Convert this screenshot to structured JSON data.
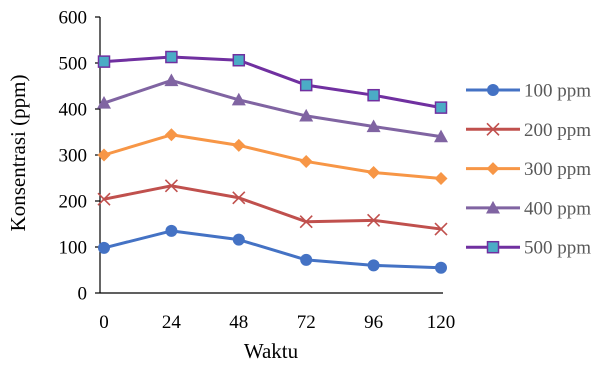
{
  "chart_data": {
    "type": "line",
    "xlabel": "Waktu",
    "ylabel": "Konsentrasi (ppm)",
    "x": [
      0,
      24,
      48,
      72,
      96,
      120
    ],
    "xlim": [
      0,
      120
    ],
    "ylim": [
      0,
      600
    ],
    "yticks": [
      0,
      100,
      200,
      300,
      400,
      500,
      600
    ],
    "grid": false,
    "legend_position": "right",
    "series": [
      {
        "name": "100 ppm",
        "values": [
          98,
          135,
          116,
          72,
          60,
          55
        ],
        "color": "#4472C4",
        "marker": "circle"
      },
      {
        "name": "200 ppm",
        "values": [
          204,
          233,
          207,
          155,
          158,
          139
        ],
        "color": "#C0504D",
        "marker": "x"
      },
      {
        "name": "300 ppm",
        "values": [
          300,
          344,
          321,
          286,
          262,
          249
        ],
        "color": "#F79646",
        "marker": "diamond"
      },
      {
        "name": "400 ppm",
        "values": [
          413,
          462,
          420,
          385,
          362,
          340
        ],
        "color": "#8064A2",
        "marker": "triangle"
      },
      {
        "name": "500 ppm",
        "values": [
          503,
          513,
          506,
          452,
          430,
          403
        ],
        "color": "#7030A0",
        "marker": "square",
        "marker_fill": "#4BACC6"
      }
    ]
  }
}
